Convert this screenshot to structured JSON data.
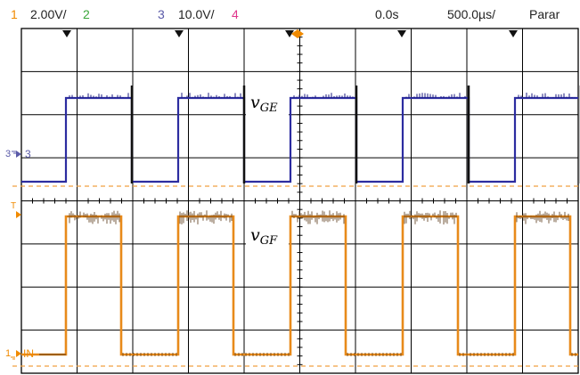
{
  "status_bar": {
    "ch1_num": "1",
    "ch1_scale": "2.00V/",
    "ch2_num": "2",
    "ch3_num": "3",
    "ch3_scale": "10.0V/",
    "ch4_num": "4",
    "time_offset": "0.0s",
    "time_scale": "500.0µs/",
    "run_state": "Parar"
  },
  "markers": {
    "ch3_marker": "3",
    "trigger_marker": "T",
    "ch1_label": "IN"
  },
  "labels": {
    "vge": "v",
    "vge_sub": "GE",
    "vgf": "v",
    "vgf_sub": "GF"
  },
  "colors": {
    "ch1": "#f08a00",
    "ch2": "#3aa63a",
    "ch3": "#5a5aa8",
    "ch4": "#e0368c",
    "trace_ch3": "#2c2ca0",
    "trace_orange": "#e88a1a",
    "grid": "#000000",
    "background": "#ffffff"
  },
  "icons": {
    "trigger_position": "down-triangle-icon",
    "time_reference": "orange-diamond-icon",
    "ground": "ground-icon"
  }
}
